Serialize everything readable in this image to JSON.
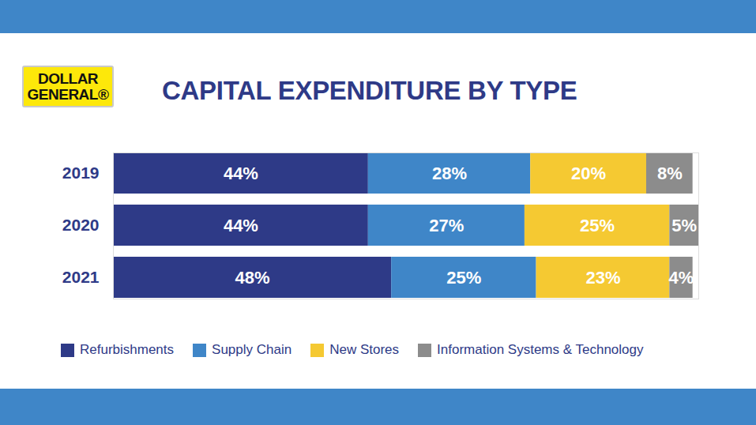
{
  "chart_data": {
    "type": "bar",
    "title": "CAPITAL EXPENDITURE BY TYPE",
    "annotations": [
      "DOLLAR",
      "GENERAL®"
    ],
    "categories": [
      "2019",
      "2020",
      "2021"
    ],
    "series": [
      {
        "name": "Refurbishments",
        "color": "#2e3a87",
        "values": [
          44,
          44,
          48
        ],
        "value_labels": [
          "44%",
          "44%",
          "48%"
        ]
      },
      {
        "name": "Supply Chain",
        "color": "#3f86c8",
        "values": [
          28,
          27,
          25
        ],
        "value_labels": [
          "28%",
          "27%",
          "25%"
        ]
      },
      {
        "name": "New Stores",
        "color": "#f5c932",
        "values": [
          20,
          25,
          23
        ],
        "value_labels": [
          "20%",
          "25%",
          "23%"
        ]
      },
      {
        "name": "Information Systems & Technology",
        "color": "#8c8c8c",
        "values": [
          8,
          5,
          4
        ],
        "value_labels": [
          "8%",
          "5%",
          "4%"
        ]
      }
    ],
    "orientation": "horizontal",
    "stacked": true,
    "data_labels": true,
    "tick_labels": "y",
    "xlim": [
      0,
      101
    ],
    "legend": "bottom"
  }
}
